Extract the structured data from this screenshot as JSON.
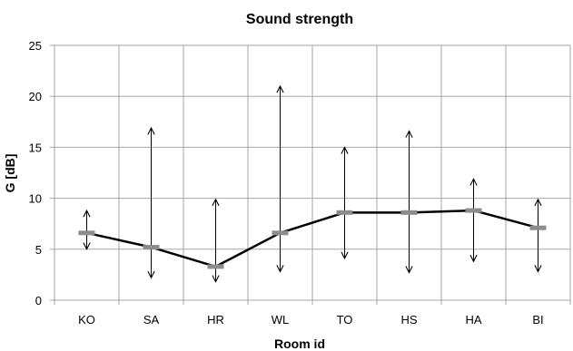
{
  "chart_data": {
    "type": "line",
    "title": "Sound strength",
    "xlabel": "Room id",
    "ylabel": "G [dB]",
    "ylim": [
      0,
      25
    ],
    "yticks": [
      0,
      5,
      10,
      15,
      20,
      25
    ],
    "grid": true,
    "legend": "none",
    "categories": [
      "KO",
      "SA",
      "HR",
      "WL",
      "TO",
      "HS",
      "HA",
      "BI"
    ],
    "series": [
      {
        "values": [
          6.6,
          5.2,
          3.3,
          6.6,
          8.6,
          8.6,
          8.8,
          7.1
        ],
        "range_min": [
          5.0,
          2.2,
          1.8,
          2.8,
          4.1,
          2.7,
          3.8,
          2.8
        ],
        "range_max": [
          8.8,
          16.9,
          9.9,
          21.0,
          15.0,
          16.6,
          11.9,
          9.9
        ]
      }
    ],
    "colors": {
      "line": "#000000",
      "marker": "#8c8c8c",
      "grid": "#a6a6a6",
      "range": "#000000"
    }
  }
}
